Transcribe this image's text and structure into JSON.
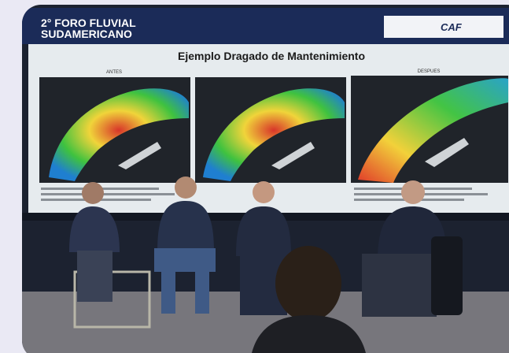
{
  "screen": {
    "event_line1": "2° FORO FLUVIAL",
    "event_line2": "SUDAMERICANO",
    "logo": "CAF",
    "slide_title": "Ejemplo Dragado de Mantenimiento",
    "panel_left": "ANTES",
    "panel_right": "DESPUES"
  }
}
